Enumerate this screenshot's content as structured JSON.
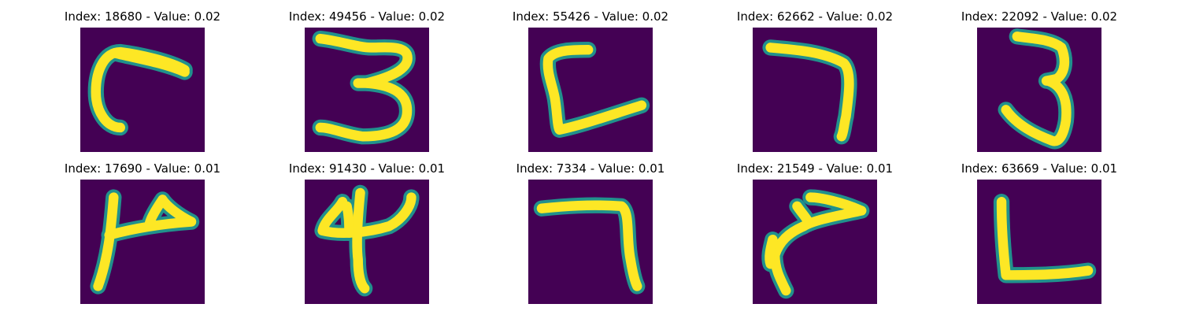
{
  "figure": {
    "panels": [
      {
        "title": "Index: 18680 - Value: 0.02",
        "depicted": "digit-like stroke resembling a hook / letter C"
      },
      {
        "title": "Index: 49456 - Value: 0.02",
        "depicted": "handwritten digit 3"
      },
      {
        "title": "Index: 55426 - Value: 0.02",
        "depicted": "stroke resembling letter L / C"
      },
      {
        "title": "Index: 62662 - Value: 0.02",
        "depicted": "handwritten digit 7"
      },
      {
        "title": "Index: 22092 - Value: 0.02",
        "depicted": "handwritten digit 3"
      },
      {
        "title": "Index: 17690 - Value: 0.01",
        "depicted": "stroke resembling digit 4 / letter P"
      },
      {
        "title": "Index: 91430 - Value: 0.01",
        "depicted": "handwritten digit 4"
      },
      {
        "title": "Index: 7334 - Value: 0.01",
        "depicted": "handwritten digit 7"
      },
      {
        "title": "Index: 21549 - Value: 0.01",
        "depicted": "curved stroke resembling digit 7"
      },
      {
        "title": "Index: 63669 - Value: 0.01",
        "depicted": "stroke resembling letter L"
      }
    ],
    "colors": {
      "background": "#440154",
      "edge": "#21918c",
      "stroke": "#fde725"
    }
  }
}
